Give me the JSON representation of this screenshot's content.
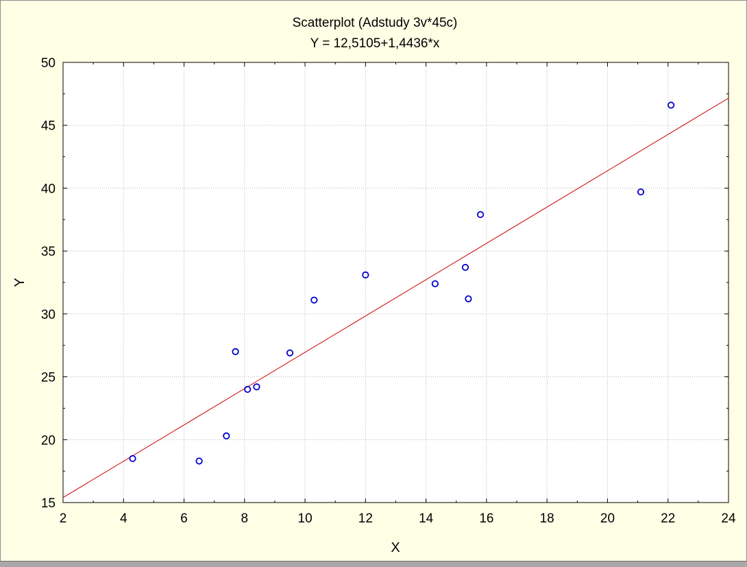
{
  "chart_data": {
    "type": "scatter",
    "title": "Scatterplot (Adstudy 3v*45c)",
    "subtitle": "Y = 12,5105+1,4436*x",
    "xlabel": "X",
    "ylabel": "Y",
    "xlim": [
      2,
      24
    ],
    "ylim": [
      15,
      50
    ],
    "xticks": [
      "2",
      "4",
      "6",
      "8",
      "10",
      "12",
      "14",
      "16",
      "18",
      "20",
      "22",
      "24"
    ],
    "yticks": [
      "15",
      "20",
      "25",
      "30",
      "35",
      "40",
      "45",
      "50"
    ],
    "grid": true,
    "points": [
      {
        "x": 4.3,
        "y": 18.5
      },
      {
        "x": 6.5,
        "y": 18.3
      },
      {
        "x": 7.4,
        "y": 20.3
      },
      {
        "x": 7.7,
        "y": 27.0
      },
      {
        "x": 8.1,
        "y": 24.0
      },
      {
        "x": 8.4,
        "y": 24.2
      },
      {
        "x": 9.5,
        "y": 26.9
      },
      {
        "x": 10.3,
        "y": 31.1
      },
      {
        "x": 12.0,
        "y": 33.1
      },
      {
        "x": 14.3,
        "y": 32.4
      },
      {
        "x": 15.3,
        "y": 33.7
      },
      {
        "x": 15.4,
        "y": 31.2
      },
      {
        "x": 15.8,
        "y": 37.9
      },
      {
        "x": 21.1,
        "y": 39.7
      },
      {
        "x": 22.1,
        "y": 46.6
      }
    ],
    "fit": {
      "intercept": 12.5105,
      "slope": 1.4436
    },
    "colors": {
      "points": "#0000cc",
      "fit_line": "#cc0000",
      "grid": "#b4b4b4",
      "background": "#ffffe6"
    }
  }
}
